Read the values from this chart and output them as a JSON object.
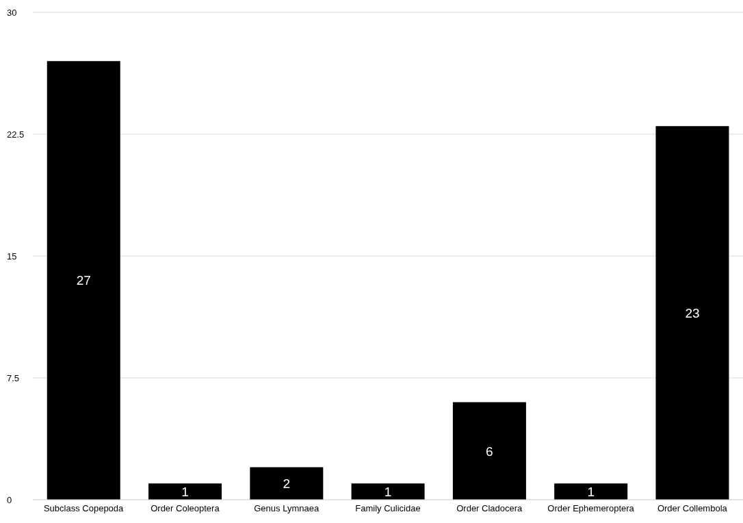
{
  "chart_data": {
    "type": "bar",
    "categories": [
      "Subclass Copepoda",
      "Order Coleoptera",
      "Genus Lymnaea",
      "Family Culicidae",
      "Order Cladocera",
      "Order Ephemeroptera",
      "Order Collembola"
    ],
    "values": [
      27,
      1,
      2,
      1,
      6,
      1,
      23
    ],
    "color": "#000000",
    "ylim": [
      0,
      30
    ],
    "yticks": [
      0,
      7.5,
      15,
      22.5,
      30
    ],
    "grid": "y",
    "data_labels": true
  }
}
